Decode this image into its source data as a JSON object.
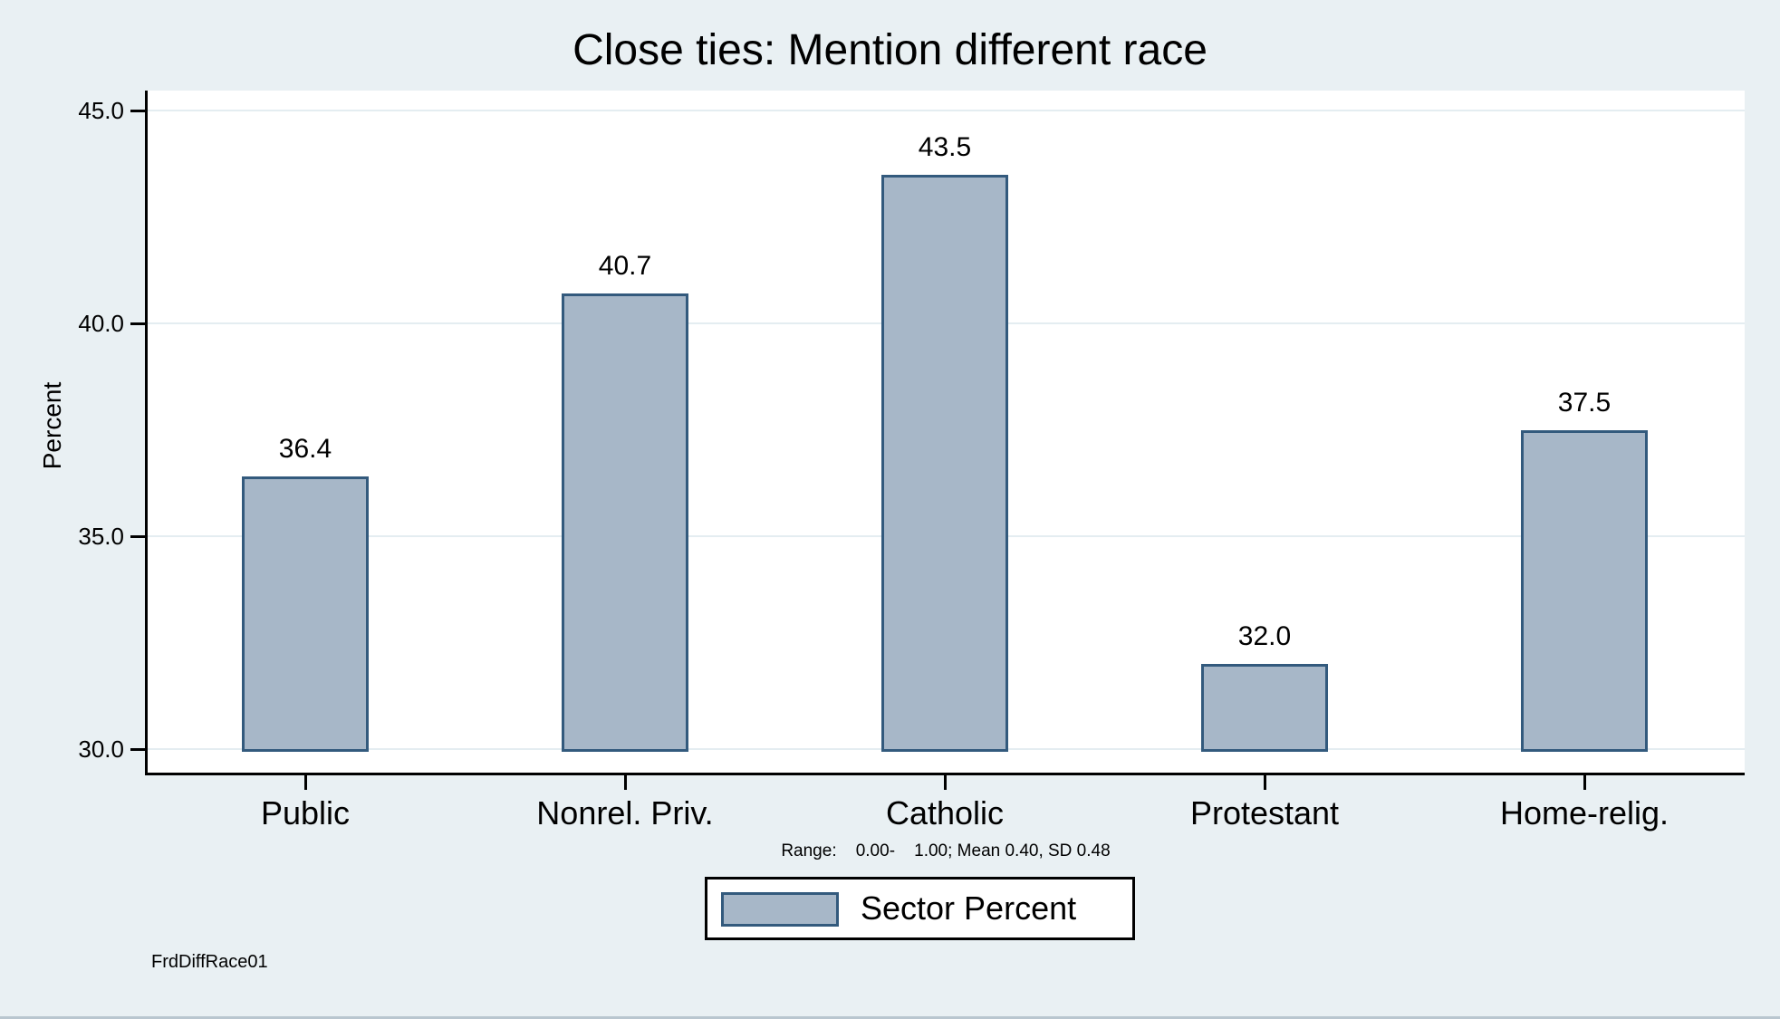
{
  "window": {
    "background_color": "#e9f0f3"
  },
  "chart_data": {
    "type": "bar",
    "title": "Close ties: Mention different race",
    "xlabel": "",
    "ylabel": "Percent",
    "categories": [
      "Public",
      "Nonrel. Priv.",
      "Catholic",
      "Protestant",
      "Home-relig."
    ],
    "values": [
      36.4,
      40.7,
      43.5,
      32.0,
      37.5
    ],
    "value_labels": [
      "36.4",
      "40.7",
      "43.5",
      "32.0",
      "37.5"
    ],
    "yticks": [
      45.0,
      40.0,
      35.0,
      30.0
    ],
    "ytick_labels": [
      "45.0",
      "40.0",
      "35.0",
      "30.0"
    ],
    "ylim": [
      30.0,
      45.0
    ],
    "grid": true,
    "bar_fill_color": "#a7b7c8",
    "bar_border_color": "#335a7d",
    "legend": {
      "position": "bottom-center",
      "entries": [
        {
          "swatch_color": "#a7b7c8",
          "label": "Sector Percent"
        }
      ]
    },
    "note": "Range:    0.00-    1.00; Mean 0.40, SD 0.48",
    "corner_note": "FrdDiffRace01"
  }
}
